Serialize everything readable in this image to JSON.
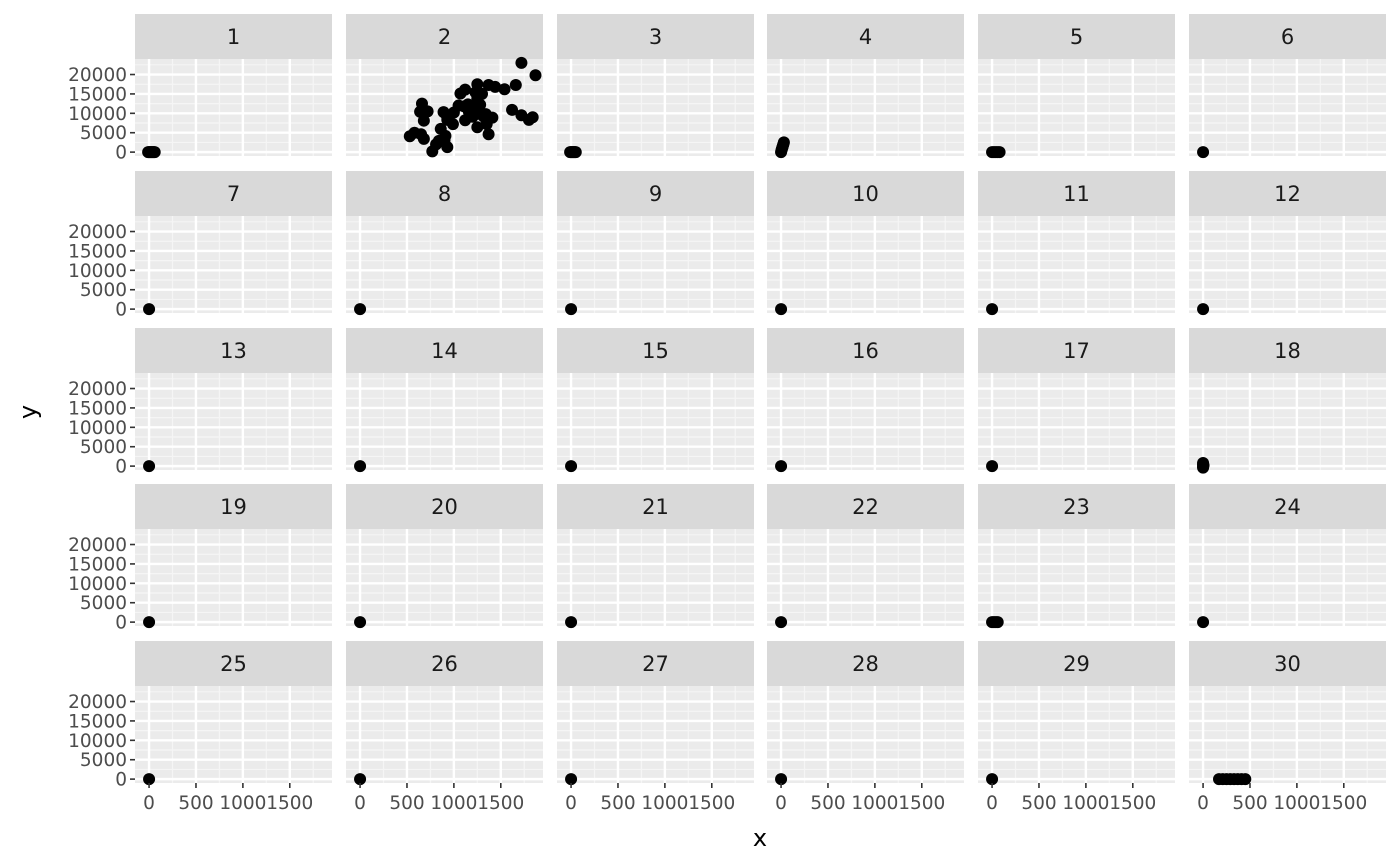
{
  "chart_data": {
    "type": "scatter",
    "facet_layout": "5 rows x 6 columns",
    "xlabel": "x",
    "ylabel": "y",
    "xlim": [
      -150,
      1950
    ],
    "ylim": [
      -1000,
      24000
    ],
    "x_ticks": [
      0,
      500,
      1000,
      1500
    ],
    "x_tick_labels": [
      "0",
      "500",
      "1000",
      "1500"
    ],
    "y_ticks": [
      0,
      5000,
      10000,
      15000,
      20000
    ],
    "y_tick_labels": [
      "0",
      "5000",
      "10000",
      "15000",
      "20000"
    ],
    "grid": true,
    "legend": "none",
    "colors": {
      "panel_background": "#ebebeb",
      "grid_major": "#ffffff",
      "grid_minor": "#f5f5f5",
      "strip_background": "#d9d9d9",
      "point": "#000000",
      "tick_text": "#4d4d4d"
    },
    "panels": [
      {
        "label": "1",
        "points": [
          [
            -10,
            0
          ],
          [
            0,
            0
          ],
          [
            10,
            0
          ],
          [
            20,
            0
          ],
          [
            30,
            0
          ],
          [
            40,
            0
          ],
          [
            50,
            0
          ],
          [
            60,
            0
          ]
        ]
      },
      {
        "label": "2",
        "points": [
          [
            1720,
            23000
          ],
          [
            1870,
            19800
          ],
          [
            1660,
            17300
          ],
          [
            1370,
            17300
          ],
          [
            1250,
            17500
          ],
          [
            1440,
            16800
          ],
          [
            1540,
            16200
          ],
          [
            1120,
            16100
          ],
          [
            1070,
            15100
          ],
          [
            1300,
            15000
          ],
          [
            1230,
            15400
          ],
          [
            1250,
            13800
          ],
          [
            660,
            12500
          ],
          [
            1150,
            12300
          ],
          [
            1280,
            12200
          ],
          [
            1050,
            12000
          ],
          [
            1110,
            11800
          ],
          [
            1210,
            11600
          ],
          [
            1620,
            10900
          ],
          [
            640,
            10400
          ],
          [
            720,
            10500
          ],
          [
            890,
            10300
          ],
          [
            1000,
            10200
          ],
          [
            1160,
            10400
          ],
          [
            1340,
            9800
          ],
          [
            1180,
            9700
          ],
          [
            1260,
            9900
          ],
          [
            1720,
            9500
          ],
          [
            1840,
            9000
          ],
          [
            1800,
            8300
          ],
          [
            1410,
            8900
          ],
          [
            1320,
            9100
          ],
          [
            930,
            8900
          ],
          [
            1200,
            9100
          ],
          [
            930,
            8300
          ],
          [
            1120,
            8200
          ],
          [
            680,
            8100
          ],
          [
            990,
            7200
          ],
          [
            1250,
            6400
          ],
          [
            1350,
            7200
          ],
          [
            860,
            6000
          ],
          [
            580,
            5000
          ],
          [
            650,
            4600
          ],
          [
            910,
            4200
          ],
          [
            1370,
            4600
          ],
          [
            530,
            4100
          ],
          [
            680,
            3400
          ],
          [
            840,
            2900
          ],
          [
            900,
            3000
          ],
          [
            810,
            2000
          ],
          [
            930,
            1300
          ],
          [
            770,
            200
          ]
        ]
      },
      {
        "label": "3",
        "points": [
          [
            -10,
            0
          ],
          [
            0,
            0
          ],
          [
            10,
            0
          ],
          [
            20,
            0
          ],
          [
            30,
            0
          ],
          [
            40,
            0
          ],
          [
            50,
            0
          ]
        ]
      },
      {
        "label": "4",
        "points": [
          [
            0,
            0
          ],
          [
            5,
            500
          ],
          [
            10,
            900
          ],
          [
            15,
            1300
          ],
          [
            20,
            1700
          ],
          [
            25,
            2100
          ],
          [
            30,
            2500
          ]
        ]
      },
      {
        "label": "5",
        "points": [
          [
            0,
            0
          ],
          [
            20,
            0
          ],
          [
            40,
            0
          ],
          [
            60,
            0
          ],
          [
            80,
            0
          ]
        ]
      },
      {
        "label": "6",
        "points": [
          [
            0,
            0
          ]
        ]
      },
      {
        "label": "7",
        "points": [
          [
            0,
            0
          ]
        ]
      },
      {
        "label": "8",
        "points": [
          [
            0,
            0
          ]
        ]
      },
      {
        "label": "9",
        "points": [
          [
            0,
            0
          ]
        ]
      },
      {
        "label": "10",
        "points": [
          [
            0,
            0
          ]
        ]
      },
      {
        "label": "11",
        "points": [
          [
            0,
            0
          ]
        ]
      },
      {
        "label": "12",
        "points": [
          [
            0,
            0
          ]
        ]
      },
      {
        "label": "13",
        "points": [
          [
            0,
            0
          ]
        ]
      },
      {
        "label": "14",
        "points": [
          [
            0,
            0
          ]
        ]
      },
      {
        "label": "15",
        "points": [
          [
            0,
            0
          ]
        ]
      },
      {
        "label": "16",
        "points": [
          [
            0,
            0
          ]
        ]
      },
      {
        "label": "17",
        "points": [
          [
            0,
            0
          ]
        ]
      },
      {
        "label": "18",
        "points": [
          [
            0,
            -400
          ],
          [
            0,
            0
          ],
          [
            0,
            400
          ],
          [
            0,
            800
          ],
          [
            5,
            200
          ]
        ]
      },
      {
        "label": "19",
        "points": [
          [
            0,
            0
          ]
        ]
      },
      {
        "label": "20",
        "points": [
          [
            0,
            0
          ]
        ]
      },
      {
        "label": "21",
        "points": [
          [
            0,
            0
          ]
        ]
      },
      {
        "label": "22",
        "points": [
          [
            0,
            0
          ]
        ]
      },
      {
        "label": "23",
        "points": [
          [
            0,
            0
          ],
          [
            20,
            0
          ],
          [
            40,
            0
          ],
          [
            60,
            0
          ]
        ]
      },
      {
        "label": "24",
        "points": [
          [
            0,
            0
          ]
        ]
      },
      {
        "label": "25",
        "points": [
          [
            0,
            0
          ]
        ]
      },
      {
        "label": "26",
        "points": [
          [
            0,
            0
          ]
        ]
      },
      {
        "label": "27",
        "points": [
          [
            0,
            0
          ]
        ]
      },
      {
        "label": "28",
        "points": [
          [
            0,
            0
          ]
        ]
      },
      {
        "label": "29",
        "points": [
          [
            0,
            0
          ]
        ]
      },
      {
        "label": "30",
        "points": [
          [
            170,
            0
          ],
          [
            210,
            0
          ],
          [
            250,
            0
          ],
          [
            290,
            0
          ],
          [
            330,
            0
          ],
          [
            370,
            0
          ],
          [
            410,
            0
          ],
          [
            450,
            0
          ]
        ]
      }
    ]
  }
}
